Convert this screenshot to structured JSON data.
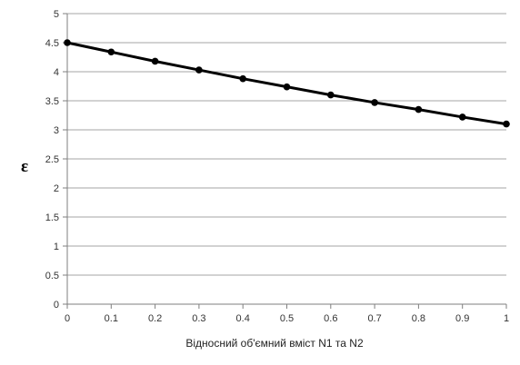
{
  "chart_data": {
    "type": "line",
    "title": "",
    "xlabel": "Відносний об'ємний вміст N1 та N2",
    "ylabel": "ε",
    "xlim": [
      0,
      1
    ],
    "ylim": [
      0,
      5
    ],
    "x_ticks": [
      "0",
      "0.1",
      "0.2",
      "0.3",
      "0.4",
      "0.5",
      "0.6",
      "0.7",
      "0.8",
      "0.9",
      "1"
    ],
    "y_ticks": [
      "0",
      "0.5",
      "1",
      "1.5",
      "2",
      "2.5",
      "3",
      "3.5",
      "4",
      "4.5",
      "5"
    ],
    "grid": "horizontal",
    "legend": "none",
    "series": [
      {
        "x": [
          0,
          0.1,
          0.2,
          0.3,
          0.4,
          0.5,
          0.6,
          0.7,
          0.8,
          0.9,
          1
        ],
        "y": [
          4.5,
          4.34,
          4.18,
          4.03,
          3.88,
          3.74,
          3.6,
          3.47,
          3.35,
          3.22,
          3.1
        ],
        "color": "#000000"
      }
    ]
  }
}
